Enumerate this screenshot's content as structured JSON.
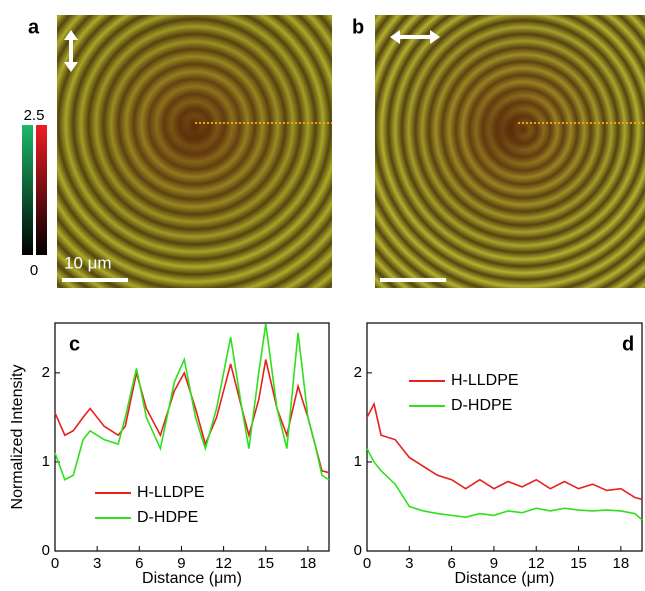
{
  "images": [
    {
      "label": "a"
    },
    {
      "label": "b"
    }
  ],
  "colorbar": {
    "ticks": [
      0,
      2.5
    ]
  },
  "scale_bar": "10 μm",
  "chart_data": [
    {
      "type": "line",
      "label": "c",
      "xlabel": "Distance (μm)",
      "ylabel": "Normalized Intensity",
      "x": [
        0,
        0.7,
        1.3,
        2,
        2.5,
        3.5,
        4.5,
        5,
        5.8,
        6.5,
        7.5,
        8.5,
        9.2,
        10,
        10.7,
        11.5,
        12.5,
        13.3,
        13.8,
        14.5,
        15,
        15.8,
        16.5,
        17.3,
        18,
        18.5,
        19,
        19.5
      ],
      "series": [
        {
          "name": "H-LLDPE",
          "color": "#e8201c",
          "values": [
            1.55,
            1.3,
            1.35,
            1.5,
            1.6,
            1.4,
            1.3,
            1.4,
            2.0,
            1.6,
            1.3,
            1.8,
            2.0,
            1.6,
            1.2,
            1.5,
            2.1,
            1.6,
            1.3,
            1.7,
            2.15,
            1.6,
            1.3,
            1.85,
            1.5,
            1.2,
            0.9,
            0.88
          ]
        },
        {
          "name": "D-HDPE",
          "color": "#2ee01c",
          "values": [
            1.1,
            0.8,
            0.85,
            1.25,
            1.35,
            1.25,
            1.2,
            1.5,
            2.05,
            1.5,
            1.15,
            1.9,
            2.15,
            1.5,
            1.15,
            1.6,
            2.4,
            1.6,
            1.15,
            2.0,
            2.55,
            1.6,
            1.15,
            2.45,
            1.5,
            1.2,
            0.85,
            0.8
          ]
        }
      ],
      "xlim": [
        0,
        19.5
      ],
      "ylim": [
        0,
        2.56
      ],
      "xticks": [
        0,
        3,
        6,
        9,
        12,
        15,
        18
      ],
      "yticks": [
        0,
        1,
        2
      ],
      "legend": "lower center"
    },
    {
      "type": "line",
      "label": "d",
      "xlabel": "Distance (μm)",
      "x": [
        0,
        0.5,
        1,
        2,
        3,
        4,
        5,
        6,
        7,
        8,
        9,
        10,
        11,
        12,
        13,
        14,
        15,
        16,
        17,
        18,
        19,
        19.5
      ],
      "series": [
        {
          "name": "H-LLDPE",
          "color": "#e8201c",
          "values": [
            1.5,
            1.65,
            1.3,
            1.25,
            1.05,
            0.95,
            0.85,
            0.8,
            0.7,
            0.8,
            0.7,
            0.78,
            0.72,
            0.8,
            0.7,
            0.78,
            0.7,
            0.75,
            0.68,
            0.7,
            0.6,
            0.58
          ]
        },
        {
          "name": "D-HDPE",
          "color": "#2ee01c",
          "values": [
            1.15,
            1.0,
            0.9,
            0.75,
            0.5,
            0.45,
            0.42,
            0.4,
            0.38,
            0.42,
            0.4,
            0.45,
            0.43,
            0.48,
            0.45,
            0.48,
            0.46,
            0.45,
            0.46,
            0.45,
            0.42,
            0.35
          ]
        }
      ],
      "xlim": [
        0,
        19.5
      ],
      "ylim": [
        0,
        2.56
      ],
      "xticks": [
        0,
        3,
        6,
        9,
        12,
        15,
        18
      ],
      "yticks": [
        0,
        1,
        2
      ],
      "legend": "upper left"
    }
  ]
}
